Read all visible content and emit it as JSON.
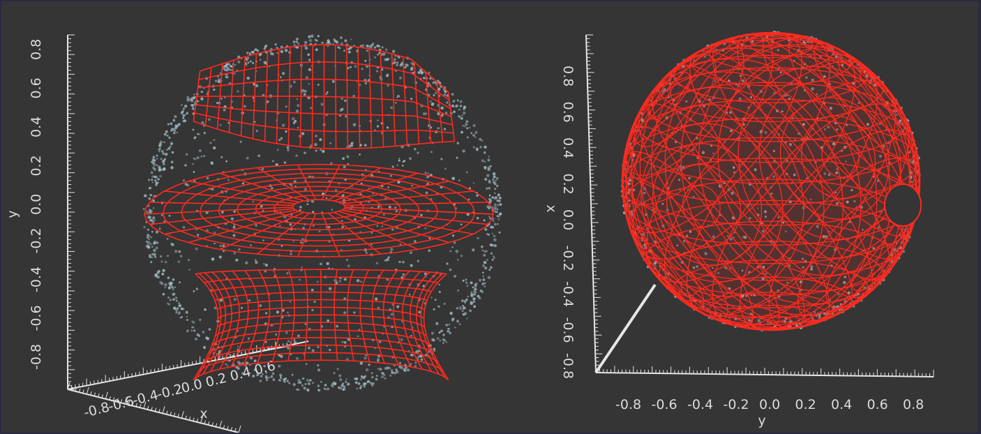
{
  "colors": {
    "background": "#353535",
    "frame": "#2a2a42",
    "axis": "#e6e6e6",
    "wireframe": "#ff2a1f",
    "points": "#9fb8c0"
  },
  "left_view": {
    "y_axis": {
      "title": "y",
      "ticks": [
        "-0.8",
        "-0.6",
        "-0.4",
        "-0.2",
        "0.0",
        "0.2",
        "0.4",
        "0.6",
        "0.8"
      ]
    },
    "x_axis": {
      "title": "x",
      "ticks": [
        "-0.8",
        "-0.6",
        "-0.4",
        "-0.2",
        "0.0",
        "0.2",
        "0.4",
        "0.6"
      ]
    }
  },
  "right_view": {
    "vertical_axis": {
      "title": "x",
      "ticks": [
        "-0.8",
        "-0.6",
        "-0.4",
        "-0.2",
        "0.0",
        "0.2",
        "0.4",
        "0.6",
        "0.8"
      ]
    },
    "horizontal_axis": {
      "title": "y",
      "ticks": [
        "-0.8",
        "-0.6",
        "-0.4",
        "-0.2",
        "0.0",
        "0.2",
        "0.4",
        "0.6",
        "0.8"
      ]
    }
  }
}
